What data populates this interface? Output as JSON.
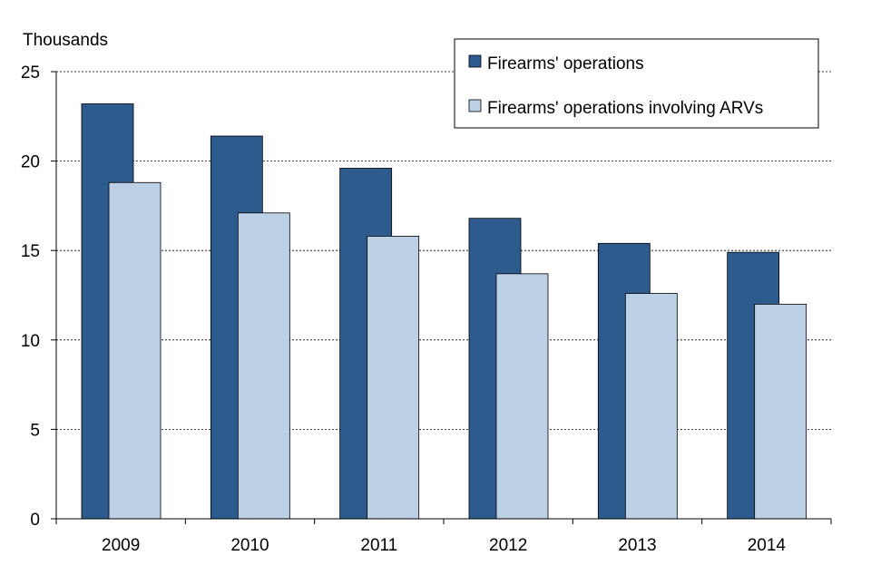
{
  "chart_data": {
    "type": "bar",
    "title": "",
    "ylabel": "Thousands",
    "xlabel": "",
    "categories": [
      "2009",
      "2010",
      "2011",
      "2012",
      "2013",
      "2014"
    ],
    "series": [
      {
        "name": "Firearms' operations",
        "color": "#2e5b8e",
        "values": [
          23.2,
          21.4,
          19.6,
          16.8,
          15.4,
          14.9
        ]
      },
      {
        "name": "Firearms' operations involving ARVs",
        "color": "#bcd0e6",
        "values": [
          18.8,
          17.1,
          15.8,
          13.7,
          12.6,
          12.0
        ]
      }
    ],
    "ylim": [
      0,
      25
    ],
    "yticks": [
      "0",
      "5",
      "10",
      "15",
      "20",
      "25"
    ],
    "grid": true,
    "legend_position": "top-right"
  }
}
